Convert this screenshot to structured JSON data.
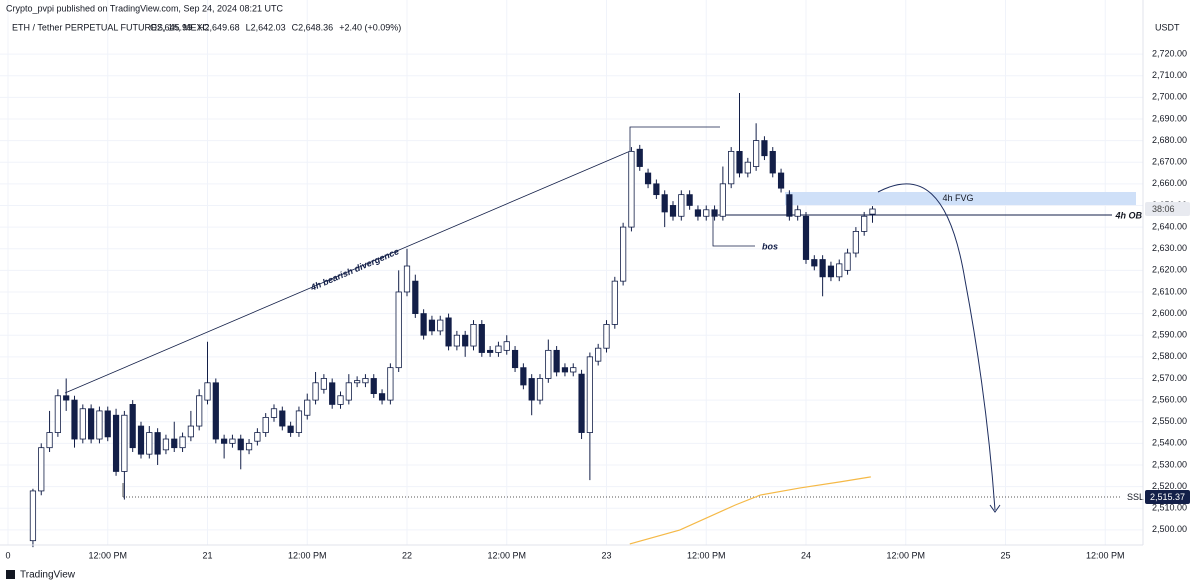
{
  "header": {
    "publisher": "Crypto_pvpi published on TradingView.com, Sep 24, 2024 08:21 UTC"
  },
  "chart_data": {
    "type": "candlestick",
    "title": "ETH / Tether PERPETUAL FUTURES, 1h, MEXC",
    "ohlc_legend": [
      "O2,645.99",
      "H2,649.68",
      "L2,642.03",
      "C2,648.36",
      "+2.40 (+0.09%)"
    ],
    "unit": "USDT",
    "bull_color": "#ffffff",
    "bear_color": "#131f48",
    "edge_color": "#131f48",
    "xlim": [
      0,
      136
    ],
    "xticks": [
      0,
      {
        "value": 12,
        "label": "12:00 PM"
      },
      {
        "value": 24,
        "label": "21"
      },
      {
        "value": 36,
        "label": "12:00 PM"
      },
      {
        "value": 48,
        "label": "22"
      },
      {
        "value": 60,
        "label": "12:00 PM"
      },
      {
        "value": 72,
        "label": "23"
      },
      {
        "value": 84,
        "label": "12:00 PM"
      },
      {
        "value": 96,
        "label": "24"
      },
      {
        "value": 108,
        "label": "12:00 PM"
      },
      {
        "value": 120,
        "label": "25"
      },
      {
        "value": 132,
        "label": "12:00 PM"
      }
    ],
    "ylim": [
      2493,
      2745
    ],
    "yticks": [
      {
        "value": 2500,
        "label": "2,500.00"
      },
      {
        "value": 2510,
        "label": "2,510.00"
      },
      {
        "value": 2520,
        "label": "2,520.00"
      },
      {
        "value": 2530,
        "label": "2,530.00"
      },
      {
        "value": 2540,
        "label": "2,540.00"
      },
      {
        "value": 2550,
        "label": "2,550.00"
      },
      {
        "value": 2560,
        "label": "2,560.00"
      },
      {
        "value": 2570,
        "label": "2,570.00"
      },
      {
        "value": 2580,
        "label": "2,580.00"
      },
      {
        "value": 2590,
        "label": "2,590.00"
      },
      {
        "value": 2600,
        "label": "2,600.00"
      },
      {
        "value": 2610,
        "label": "2,610.00"
      },
      {
        "value": 2620,
        "label": "2,620.00"
      },
      {
        "value": 2630,
        "label": "2,630.00"
      },
      {
        "value": 2640,
        "label": "2,640.00"
      },
      {
        "value": 2650,
        "label": "2,650.00"
      },
      {
        "value": 2660,
        "label": "2,660.00"
      },
      {
        "value": 2670,
        "label": "2,670.00"
      },
      {
        "value": 2680,
        "label": "2,680.00"
      },
      {
        "value": 2690,
        "label": "2,690.00"
      },
      {
        "value": 2700,
        "label": "2,700.00"
      },
      {
        "value": 2710,
        "label": "2,710.00"
      },
      {
        "value": 2720,
        "label": "2,720.00"
      }
    ],
    "candles": [
      {
        "x": 3,
        "o": 2495,
        "h": 2519,
        "l": 2492,
        "c": 2518
      },
      {
        "x": 4,
        "o": 2518,
        "h": 2540,
        "l": 2516,
        "c": 2538
      },
      {
        "x": 5,
        "o": 2538,
        "h": 2555,
        "l": 2536,
        "c": 2545
      },
      {
        "x": 6,
        "o": 2545,
        "h": 2565,
        "l": 2543,
        "c": 2562
      },
      {
        "x": 7,
        "o": 2562,
        "h": 2570,
        "l": 2555,
        "c": 2560
      },
      {
        "x": 8,
        "o": 2560,
        "h": 2562,
        "l": 2538,
        "c": 2542
      },
      {
        "x": 9,
        "o": 2542,
        "h": 2558,
        "l": 2540,
        "c": 2556
      },
      {
        "x": 10,
        "o": 2556,
        "h": 2558,
        "l": 2540,
        "c": 2542
      },
      {
        "x": 11,
        "o": 2542,
        "h": 2557,
        "l": 2540,
        "c": 2555
      },
      {
        "x": 12,
        "o": 2555,
        "h": 2557,
        "l": 2541,
        "c": 2543
      },
      {
        "x": 13,
        "o": 2553,
        "h": 2556,
        "l": 2525,
        "c": 2527
      },
      {
        "x": 14,
        "o": 2527,
        "h": 2555,
        "l": 2514,
        "c": 2553
      },
      {
        "x": 15,
        "o": 2558,
        "h": 2560,
        "l": 2536,
        "c": 2538
      },
      {
        "x": 16,
        "o": 2548,
        "h": 2550,
        "l": 2533,
        "c": 2535
      },
      {
        "x": 17,
        "o": 2535,
        "h": 2548,
        "l": 2533,
        "c": 2545
      },
      {
        "x": 18,
        "o": 2545,
        "h": 2547,
        "l": 2530,
        "c": 2535
      },
      {
        "x": 19,
        "o": 2537,
        "h": 2544,
        "l": 2535,
        "c": 2542
      },
      {
        "x": 20,
        "o": 2542,
        "h": 2550,
        "l": 2536,
        "c": 2538
      },
      {
        "x": 21,
        "o": 2538,
        "h": 2545,
        "l": 2536,
        "c": 2543
      },
      {
        "x": 22,
        "o": 2543,
        "h": 2555,
        "l": 2541,
        "c": 2548
      },
      {
        "x": 23,
        "o": 2548,
        "h": 2565,
        "l": 2546,
        "c": 2562
      },
      {
        "x": 24,
        "o": 2560,
        "h": 2587,
        "l": 2558,
        "c": 2568
      },
      {
        "x": 25,
        "o": 2568,
        "h": 2570,
        "l": 2540,
        "c": 2542
      },
      {
        "x": 26,
        "o": 2542,
        "h": 2544,
        "l": 2533,
        "c": 2540
      },
      {
        "x": 27,
        "o": 2540,
        "h": 2544,
        "l": 2538,
        "c": 2542
      },
      {
        "x": 28,
        "o": 2542,
        "h": 2544,
        "l": 2528,
        "c": 2537
      },
      {
        "x": 29,
        "o": 2537,
        "h": 2542,
        "l": 2535,
        "c": 2540
      },
      {
        "x": 30,
        "o": 2541,
        "h": 2547,
        "l": 2539,
        "c": 2545
      },
      {
        "x": 31,
        "o": 2545,
        "h": 2554,
        "l": 2543,
        "c": 2552
      },
      {
        "x": 32,
        "o": 2552,
        "h": 2558,
        "l": 2550,
        "c": 2556
      },
      {
        "x": 33,
        "o": 2555,
        "h": 2557,
        "l": 2546,
        "c": 2548
      },
      {
        "x": 34,
        "o": 2548,
        "h": 2550,
        "l": 2543,
        "c": 2545
      },
      {
        "x": 35,
        "o": 2545,
        "h": 2557,
        "l": 2543,
        "c": 2555
      },
      {
        "x": 36,
        "o": 2553,
        "h": 2563,
        "l": 2551,
        "c": 2560
      },
      {
        "x": 37,
        "o": 2560,
        "h": 2573,
        "l": 2558,
        "c": 2568
      },
      {
        "x": 38,
        "o": 2565,
        "h": 2572,
        "l": 2563,
        "c": 2570
      },
      {
        "x": 39,
        "o": 2568,
        "h": 2570,
        "l": 2556,
        "c": 2558
      },
      {
        "x": 40,
        "o": 2558,
        "h": 2564,
        "l": 2556,
        "c": 2562
      },
      {
        "x": 41,
        "o": 2560,
        "h": 2572,
        "l": 2558,
        "c": 2568
      },
      {
        "x": 42,
        "o": 2568,
        "h": 2571,
        "l": 2566,
        "c": 2569
      },
      {
        "x": 43,
        "o": 2568,
        "h": 2572,
        "l": 2566,
        "c": 2570
      },
      {
        "x": 44,
        "o": 2570,
        "h": 2572,
        "l": 2561,
        "c": 2563
      },
      {
        "x": 45,
        "o": 2563,
        "h": 2565,
        "l": 2558,
        "c": 2560
      },
      {
        "x": 46,
        "o": 2560,
        "h": 2577,
        "l": 2558,
        "c": 2575
      },
      {
        "x": 47,
        "o": 2575,
        "h": 2620,
        "l": 2573,
        "c": 2610
      },
      {
        "x": 48,
        "o": 2610,
        "h": 2630,
        "l": 2608,
        "c": 2622
      },
      {
        "x": 49,
        "o": 2615,
        "h": 2618,
        "l": 2598,
        "c": 2600
      },
      {
        "x": 50,
        "o": 2600,
        "h": 2602,
        "l": 2588,
        "c": 2590
      },
      {
        "x": 51,
        "o": 2597,
        "h": 2599,
        "l": 2590,
        "c": 2592
      },
      {
        "x": 52,
        "o": 2592,
        "h": 2599,
        "l": 2590,
        "c": 2597
      },
      {
        "x": 53,
        "o": 2598,
        "h": 2600,
        "l": 2583,
        "c": 2585
      },
      {
        "x": 54,
        "o": 2585,
        "h": 2592,
        "l": 2583,
        "c": 2590
      },
      {
        "x": 55,
        "o": 2590,
        "h": 2592,
        "l": 2580,
        "c": 2585
      },
      {
        "x": 56,
        "o": 2585,
        "h": 2597,
        "l": 2583,
        "c": 2595
      },
      {
        "x": 57,
        "o": 2595,
        "h": 2597,
        "l": 2580,
        "c": 2582
      },
      {
        "x": 58,
        "o": 2583,
        "h": 2585,
        "l": 2580,
        "c": 2582
      },
      {
        "x": 59,
        "o": 2582,
        "h": 2587,
        "l": 2580,
        "c": 2585
      },
      {
        "x": 60,
        "o": 2583,
        "h": 2590,
        "l": 2581,
        "c": 2587
      },
      {
        "x": 61,
        "o": 2583,
        "h": 2585,
        "l": 2573,
        "c": 2575
      },
      {
        "x": 62,
        "o": 2575,
        "h": 2577,
        "l": 2565,
        "c": 2567
      },
      {
        "x": 63,
        "o": 2570,
        "h": 2572,
        "l": 2553,
        "c": 2560
      },
      {
        "x": 64,
        "o": 2560,
        "h": 2572,
        "l": 2558,
        "c": 2570
      },
      {
        "x": 65,
        "o": 2570,
        "h": 2588,
        "l": 2568,
        "c": 2583
      },
      {
        "x": 66,
        "o": 2583,
        "h": 2585,
        "l": 2571,
        "c": 2573
      },
      {
        "x": 67,
        "o": 2575,
        "h": 2577,
        "l": 2571,
        "c": 2573
      },
      {
        "x": 68,
        "o": 2573,
        "h": 2577,
        "l": 2571,
        "c": 2575
      },
      {
        "x": 69,
        "o": 2572,
        "h": 2574,
        "l": 2542,
        "c": 2545
      },
      {
        "x": 70,
        "o": 2545,
        "h": 2582,
        "l": 2523,
        "c": 2580
      },
      {
        "x": 71,
        "o": 2578,
        "h": 2586,
        "l": 2576,
        "c": 2584
      },
      {
        "x": 72,
        "o": 2584,
        "h": 2597,
        "l": 2582,
        "c": 2595
      },
      {
        "x": 73,
        "o": 2595,
        "h": 2617,
        "l": 2593,
        "c": 2615
      },
      {
        "x": 74,
        "o": 2615,
        "h": 2642,
        "l": 2613,
        "c": 2640
      },
      {
        "x": 75,
        "o": 2640,
        "h": 2677,
        "l": 2638,
        "c": 2675
      },
      {
        "x": 76,
        "o": 2676,
        "h": 2678,
        "l": 2666,
        "c": 2668
      },
      {
        "x": 77,
        "o": 2665,
        "h": 2667,
        "l": 2658,
        "c": 2660
      },
      {
        "x": 78,
        "o": 2660,
        "h": 2662,
        "l": 2653,
        "c": 2655
      },
      {
        "x": 79,
        "o": 2655,
        "h": 2657,
        "l": 2640,
        "c": 2647
      },
      {
        "x": 80,
        "o": 2650,
        "h": 2652,
        "l": 2643,
        "c": 2645
      },
      {
        "x": 81,
        "o": 2645,
        "h": 2657,
        "l": 2643,
        "c": 2655
      },
      {
        "x": 82,
        "o": 2655,
        "h": 2657,
        "l": 2648,
        "c": 2650
      },
      {
        "x": 83,
        "o": 2648,
        "h": 2650,
        "l": 2643,
        "c": 2645
      },
      {
        "x": 84,
        "o": 2645,
        "h": 2650,
        "l": 2643,
        "c": 2648
      },
      {
        "x": 85,
        "o": 2648,
        "h": 2650,
        "l": 2643,
        "c": 2645
      },
      {
        "x": 86,
        "o": 2645,
        "h": 2668,
        "l": 2643,
        "c": 2660
      },
      {
        "x": 87,
        "o": 2660,
        "h": 2677,
        "l": 2658,
        "c": 2675
      },
      {
        "x": 88,
        "o": 2675,
        "h": 2702,
        "l": 2663,
        "c": 2665
      },
      {
        "x": 89,
        "o": 2665,
        "h": 2672,
        "l": 2663,
        "c": 2670
      },
      {
        "x": 90,
        "o": 2668,
        "h": 2688,
        "l": 2666,
        "c": 2680
      },
      {
        "x": 91,
        "o": 2680,
        "h": 2682,
        "l": 2671,
        "c": 2673
      },
      {
        "x": 92,
        "o": 2675,
        "h": 2677,
        "l": 2663,
        "c": 2665
      },
      {
        "x": 93,
        "o": 2665,
        "h": 2667,
        "l": 2656,
        "c": 2658
      },
      {
        "x": 94,
        "o": 2655,
        "h": 2657,
        "l": 2643,
        "c": 2645
      },
      {
        "x": 95,
        "o": 2645,
        "h": 2650,
        "l": 2643,
        "c": 2648
      },
      {
        "x": 96,
        "o": 2645,
        "h": 2647,
        "l": 2623,
        "c": 2625
      },
      {
        "x": 97,
        "o": 2625,
        "h": 2627,
        "l": 2620,
        "c": 2622
      },
      {
        "x": 98,
        "o": 2625,
        "h": 2627,
        "l": 2608,
        "c": 2617
      },
      {
        "x": 99,
        "o": 2622,
        "h": 2624,
        "l": 2615,
        "c": 2617
      },
      {
        "x": 100,
        "o": 2617,
        "h": 2625,
        "l": 2615,
        "c": 2623
      },
      {
        "x": 101,
        "o": 2620,
        "h": 2630,
        "l": 2618,
        "c": 2628
      },
      {
        "x": 102,
        "o": 2628,
        "h": 2640,
        "l": 2626,
        "c": 2638
      },
      {
        "x": 103,
        "o": 2638,
        "h": 2647,
        "l": 2636,
        "c": 2645
      },
      {
        "x": 104,
        "o": 2645.99,
        "h": 2649.68,
        "l": 2642.03,
        "c": 2648.36
      }
    ],
    "overlay_line": {
      "color": "#f5b947",
      "x": [
        74.8,
        80.8,
        87.5,
        90.5,
        95.3,
        100.1,
        103.8
      ],
      "values": [
        2493.5,
        2499.9,
        2511.5,
        2516.1,
        2519.4,
        2522.2,
        2524.5
      ]
    },
    "annotations": {
      "divergence": "4h bearish divergence",
      "bos": "bos",
      "fvg": "4h FVG",
      "ob": "4h OB",
      "ssl": "SSL",
      "ssl_price": "2,515.37",
      "countdown": "38:06"
    }
  },
  "footer": {
    "brand": "TradingView"
  }
}
